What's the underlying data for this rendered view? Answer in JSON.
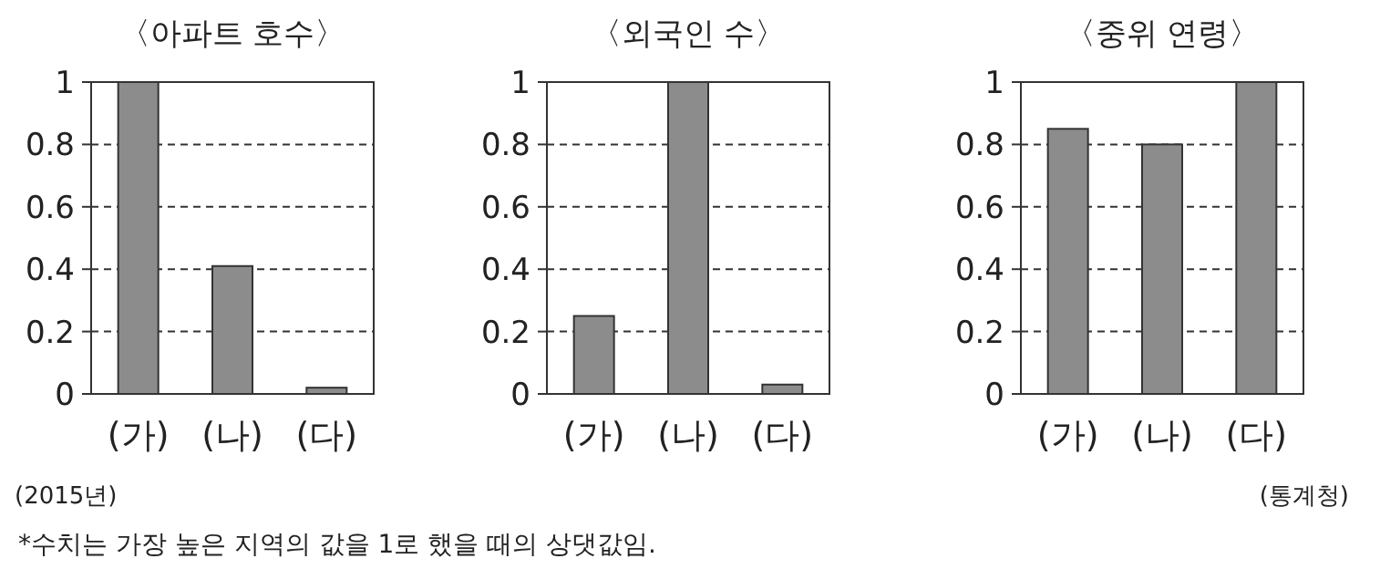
{
  "chart_data": [
    {
      "type": "bar",
      "title": "〈아파트 호수〉",
      "categories": [
        "(가)",
        "(나)",
        "(다)"
      ],
      "values": [
        1,
        0.41,
        0.02
      ],
      "color": "#8c8c8c",
      "ylim": [
        0,
        1
      ],
      "yticks": [
        0,
        0.2,
        0.4,
        0.6,
        0.8,
        1
      ],
      "grid": "y",
      "annotations": [
        "(2015년)",
        "*수치는 가장 높은 지역의 값을 1로 했을 때의 상댓값임."
      ]
    },
    {
      "type": "bar",
      "title": "〈외국인 수〉",
      "categories": [
        "(가)",
        "(나)",
        "(다)"
      ],
      "values": [
        0.25,
        1,
        0.03
      ],
      "color": "#8c8c8c",
      "ylim": [
        0,
        1
      ],
      "yticks": [
        0,
        0.2,
        0.4,
        0.6,
        0.8,
        1
      ],
      "grid": "y"
    },
    {
      "type": "bar",
      "title": "〈중위 연령〉",
      "categories": [
        "(가)",
        "(나)",
        "(다)"
      ],
      "values": [
        0.85,
        0.8,
        1
      ],
      "color": "#8c8c8c",
      "ylim": [
        0,
        1
      ],
      "yticks": [
        0,
        0.2,
        0.4,
        0.6,
        0.8,
        1
      ],
      "grid": "y",
      "annotations": [
        "(통계청)"
      ]
    }
  ]
}
